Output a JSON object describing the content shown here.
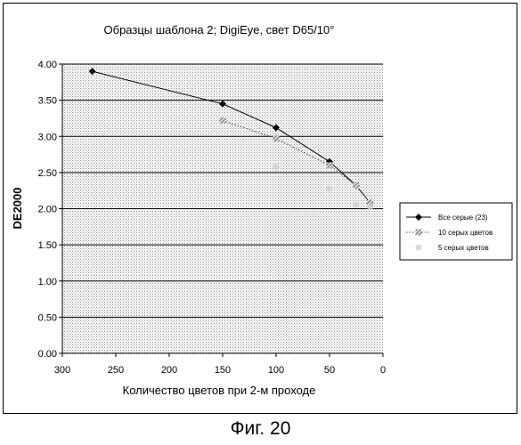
{
  "chart_data": {
    "type": "line",
    "title": "Образцы шаблона 2; DigiEye, свет D65/10°",
    "xlabel": "Количество цветов при 2-м проходе",
    "ylabel": "DE2000",
    "xlim": [
      300,
      0
    ],
    "ylim": [
      0,
      4
    ],
    "x_reversed": true,
    "x_ticks": [
      "300",
      "250",
      "200",
      "150",
      "100",
      "50",
      "0"
    ],
    "y_ticks": [
      "0.00",
      "0.50",
      "1.00",
      "1.50",
      "2.00",
      "2.50",
      "3.00",
      "3.50",
      "4.00"
    ],
    "grid": "horizontal",
    "plot_background": "dotted gray",
    "legend_position": "right",
    "series": [
      {
        "name": "Все серые (23)",
        "x": [
          272,
          150,
          100,
          50,
          25,
          12
        ],
        "y": [
          3.9,
          3.45,
          3.12,
          2.65,
          2.32,
          2.08
        ],
        "color": "#000000",
        "marker": "diamond",
        "line": "solid"
      },
      {
        "name": "10 серых цветов",
        "x": [
          150,
          100,
          50,
          25,
          12
        ],
        "y": [
          3.22,
          2.97,
          2.6,
          2.32,
          2.08
        ],
        "color": "#555555",
        "marker": "hatched-square",
        "line": "dotted"
      },
      {
        "name": "5 серых цветов",
        "x": [
          100,
          50,
          25,
          12
        ],
        "y": [
          2.58,
          2.28,
          2.05,
          2.02
        ],
        "color": "#d0d0d0",
        "marker": "faint-circle",
        "line": "none"
      }
    ]
  },
  "caption": "Фиг. 20"
}
